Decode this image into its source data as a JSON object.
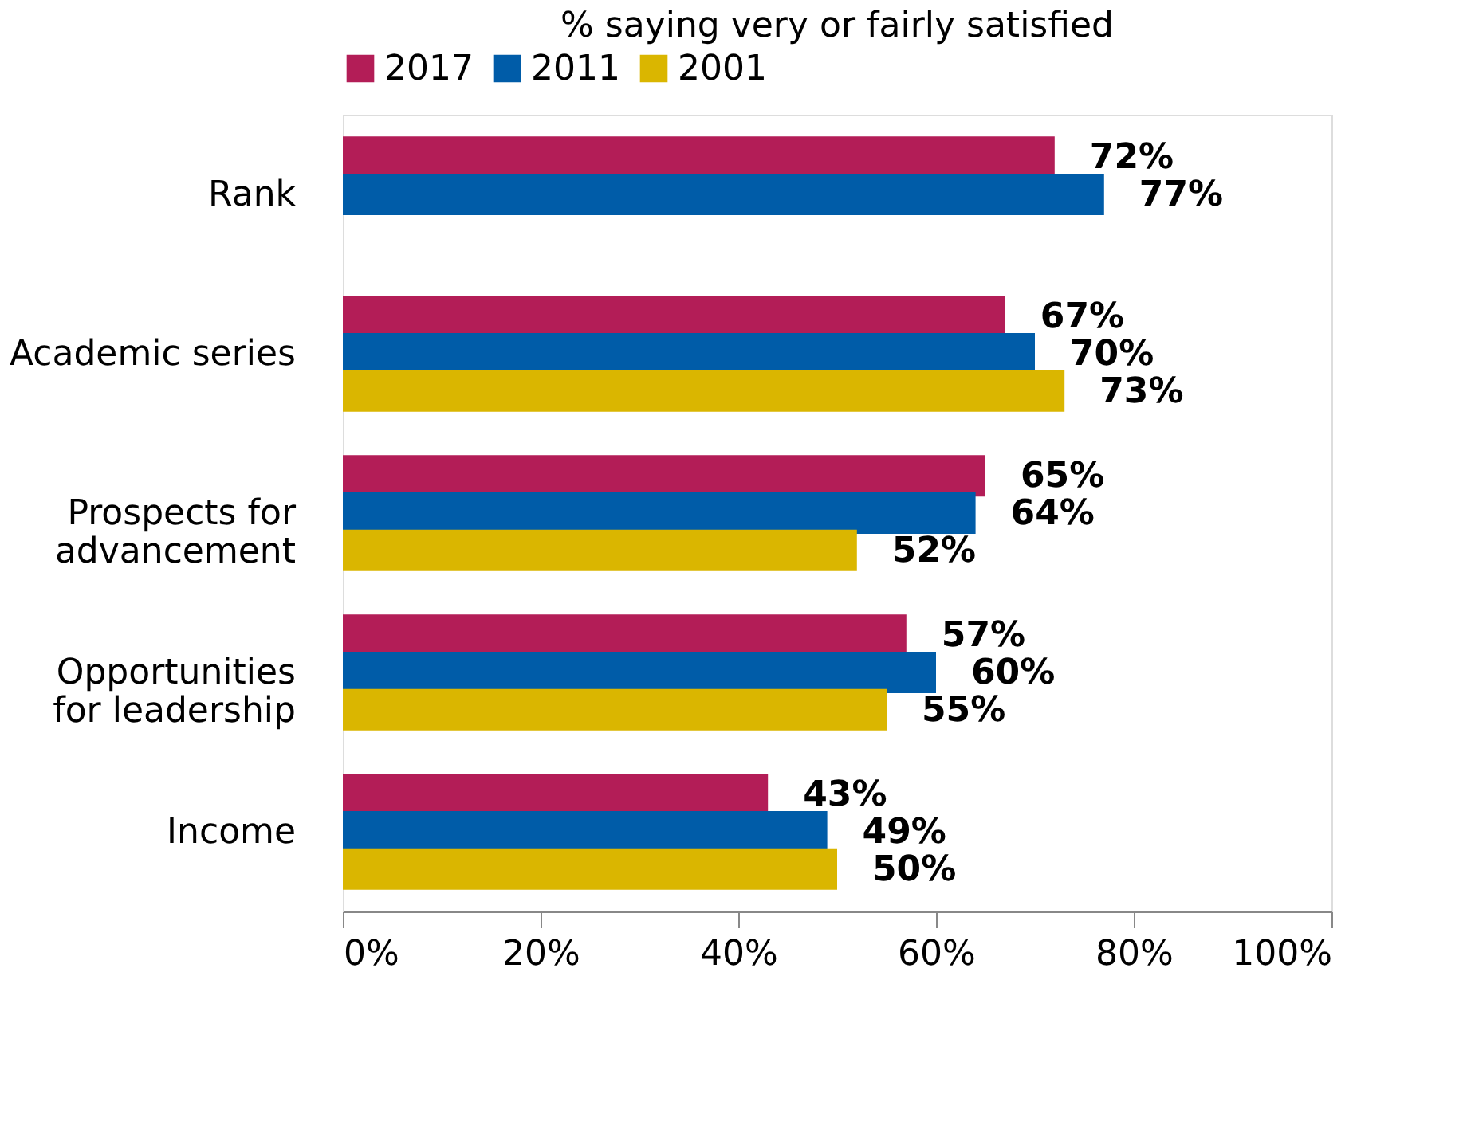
{
  "chart_data": {
    "type": "bar",
    "orientation": "horizontal",
    "title": "% saying very or fairly satisfied",
    "categories": [
      "Rank",
      "Academic series",
      "Prospects for advancement",
      "Opportunities for leadership",
      "Income"
    ],
    "series": [
      {
        "name": "2017",
        "color": "#b31d57",
        "values": [
          72,
          67,
          65,
          57,
          43
        ],
        "value_labels": [
          "72%",
          "67%",
          "65%",
          "57%",
          "43%"
        ]
      },
      {
        "name": "2011",
        "color": "#005ca8",
        "values": [
          77,
          70,
          64,
          60,
          49
        ],
        "value_labels": [
          "77%",
          "70%",
          "64%",
          "60%",
          "49%"
        ]
      },
      {
        "name": "2001",
        "color": "#dab600",
        "values": [
          null,
          73,
          52,
          55,
          50
        ],
        "value_labels": [
          null,
          "73%",
          "52%",
          "55%",
          "50%"
        ]
      }
    ],
    "xlim": [
      0,
      100
    ],
    "xticks": [
      {
        "value": 0,
        "label": "0%"
      },
      {
        "value": 20,
        "label": "20%"
      },
      {
        "value": 40,
        "label": "40%"
      },
      {
        "value": 60,
        "label": "60%"
      },
      {
        "value": 80,
        "label": "80%"
      },
      {
        "value": 100,
        "label": "100%"
      }
    ],
    "grid": false,
    "legend": "top"
  }
}
